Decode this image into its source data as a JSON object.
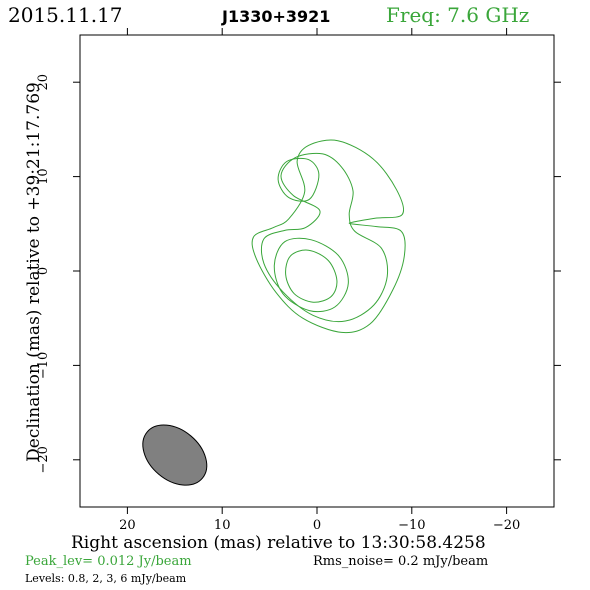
{
  "header": {
    "date": "2015.11.17",
    "source": "J1330+3921",
    "frequency": "Freq: 7.6 GHz"
  },
  "footer": {
    "peak": "Peak_lev=  0.012 Jy/beam",
    "rms": "Rms_noise=   0.2 mJy/beam",
    "levels": "Levels: 0.8,    2,    3,    6 mJy/beam"
  },
  "colors": {
    "contour": "#3aa63a",
    "beam_fill": "#808080",
    "axes": "#000000"
  },
  "chart_data": {
    "type": "contour",
    "xlabel": "Right ascension (mas) relative to 13:30:58.4258",
    "ylabel": "Declination (mas) relative to +39:21:17.769",
    "xlim": [
      25,
      -25
    ],
    "ylim": [
      -25,
      25
    ],
    "x_ticks": [
      20,
      10,
      0,
      -10,
      -20
    ],
    "y_ticks": [
      20,
      10,
      0,
      -10,
      -20
    ],
    "x_tick_labels": [
      "20",
      "10",
      "0",
      "−10",
      "−20"
    ],
    "y_tick_labels": [
      "20",
      "10",
      "0",
      "−10",
      "−20"
    ],
    "contour_levels_mJy": [
      0.8,
      2,
      3,
      6
    ],
    "peak_Jy_per_beam": 0.012,
    "rms_noise_mJy_per_beam": 0.2,
    "contours": [
      {
        "level": 0.8,
        "points": [
          [
            -3.7,
            5.5
          ],
          [
            -8.1,
            5.1
          ],
          [
            -9.5,
            3.5
          ],
          [
            -7.8,
            -2.2
          ],
          [
            -5.9,
            -6.1
          ],
          [
            -2.6,
            -6.4
          ],
          [
            1.6,
            -4.6
          ],
          [
            5.5,
            -0.4
          ],
          [
            7.1,
            3.0
          ],
          [
            6.3,
            4.7
          ],
          [
            3.0,
            5.5
          ],
          [
            1.8,
            8.1
          ],
          [
            3.7,
            11.8
          ],
          [
            1.8,
            13.2
          ],
          [
            -1.7,
            13.1
          ],
          [
            -6.4,
            10.2
          ],
          [
            -9.2,
            5.5
          ],
          [
            -8.3,
            3.8
          ],
          [
            -4.9,
            3.1
          ],
          [
            -3.7,
            5.5
          ]
        ]
      },
      {
        "level": 2,
        "points": [
          [
            -2.0,
            13.2
          ],
          [
            1.8,
            12.2
          ],
          [
            3.5,
            10.7
          ],
          [
            2.8,
            8.2
          ],
          [
            1.3,
            5.9
          ],
          [
            -1.2,
            3.9
          ],
          [
            -4.0,
            3.8
          ],
          [
            -6.8,
            1.8
          ],
          [
            -7.1,
            -1.5
          ],
          [
            -5.2,
            -4.4
          ],
          [
            -2.8,
            -5.6
          ],
          [
            0.5,
            -4.4
          ],
          [
            3.8,
            -1.8
          ],
          [
            5.6,
            0.6
          ],
          [
            6.1,
            3.3
          ],
          [
            3.3,
            4.8
          ],
          [
            -1.0,
            5.3
          ],
          [
            -3.7,
            4.9
          ],
          [
            -6.2,
            3.2
          ],
          [
            -6.7,
            1.0
          ],
          [
            -5.9,
            -2.8
          ],
          [
            -4.9,
            -4.0
          ],
          [
            -1.8,
            -5.3
          ],
          [
            1.3,
            -3.2
          ]
        ]
      },
      {
        "level": 3,
        "points": [
          [
            -0.5,
            -0.5
          ],
          [
            0.9,
            2.5
          ],
          [
            2.8,
            3.6
          ],
          [
            4.5,
            2.5
          ],
          [
            4.6,
            -0.8
          ],
          [
            3.0,
            -3.4
          ],
          [
            0.3,
            -4.2
          ],
          [
            -2.0,
            -3.3
          ],
          [
            -3.3,
            -1.1
          ],
          [
            -2.5,
            1.1
          ],
          [
            -0.5,
            -0.5
          ]
        ]
      },
      {
        "level": 6,
        "points": [
          [
            -1.9,
            -1.0
          ],
          [
            -1.1,
            0.8
          ],
          [
            0.8,
            1.9
          ],
          [
            2.4,
            1.7
          ],
          [
            3.0,
            0.1
          ],
          [
            2.7,
            -1.8
          ],
          [
            1.1,
            -2.9
          ],
          [
            -0.7,
            -2.8
          ],
          [
            -1.9,
            -1.0
          ]
        ]
      }
    ],
    "beam": {
      "center": [
        15,
        -19.5
      ],
      "major_mas": 7.6,
      "minor_mas": 6.2,
      "pa_deg": -40
    }
  }
}
